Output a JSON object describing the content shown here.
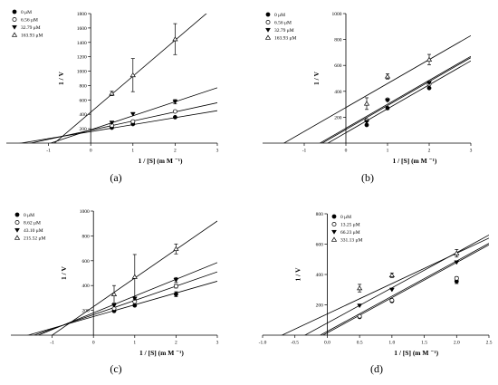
{
  "chart_data": [
    {
      "panel": "(a)",
      "type": "line",
      "xlabel": "1 / [S] (m M ⁻¹)",
      "ylabel": "1 / V",
      "xlim": [
        -2,
        3
      ],
      "ylim": [
        0,
        1800
      ],
      "xticks": [
        -1,
        0,
        1,
        2,
        3
      ],
      "yticks": [
        200,
        400,
        600,
        800,
        1000,
        1200,
        1400,
        1600,
        1800
      ],
      "xticklabels": [
        "-1",
        "0",
        "1",
        "2",
        "3"
      ],
      "yticklabels": [
        "200",
        "400",
        "600",
        "800",
        "1000",
        "1200",
        "1400",
        "1600",
        "1800"
      ],
      "series": [
        {
          "name": "0 μM",
          "marker": "filled-circle",
          "x": [
            0.5,
            1,
            2
          ],
          "y": [
            215,
            265,
            360
          ],
          "err": [
            0,
            0,
            0
          ],
          "line": {
            "slope": 97,
            "intercept": 160
          }
        },
        {
          "name": "6.56 μM",
          "marker": "open-circle",
          "x": [
            0.5,
            1,
            2
          ],
          "y": [
            245,
            300,
            440
          ],
          "err": [
            0,
            0,
            0
          ],
          "line": {
            "slope": 127,
            "intercept": 180
          }
        },
        {
          "name": "32.79 μM",
          "marker": "filled-triangle-down",
          "x": [
            0.5,
            1,
            2
          ],
          "y": [
            285,
            405,
            575
          ],
          "err": [
            0,
            0,
            30
          ],
          "line": {
            "slope": 195,
            "intercept": 185
          }
        },
        {
          "name": "163.93 μM",
          "marker": "open-triangle-up",
          "x": [
            0.5,
            1,
            2
          ],
          "y": [
            690,
            945,
            1445
          ],
          "err": [
            30,
            230,
            215
          ],
          "line": {
            "slope": 500,
            "intercept": 430
          }
        }
      ]
    },
    {
      "panel": "(b)",
      "type": "line",
      "xlabel": "1 / [S] (m M ⁻¹)",
      "ylabel": "1 / V",
      "xlim": [
        -2,
        3
      ],
      "ylim": [
        0,
        1000
      ],
      "xticks": [
        -1,
        0,
        1,
        2,
        3
      ],
      "yticks": [
        200,
        400,
        600,
        800,
        1000
      ],
      "xticklabels": [
        "-1",
        "0",
        "1",
        "2",
        "3"
      ],
      "yticklabels": [
        "200",
        "400",
        "600",
        "800",
        "1000"
      ],
      "series": [
        {
          "name": "0 μM",
          "marker": "filled-circle",
          "x": [
            0.5,
            1,
            2
          ],
          "y": [
            140,
            270,
            425
          ],
          "err": [
            0,
            0,
            0
          ],
          "line": {
            "slope": 185,
            "intercept": 80
          }
        },
        {
          "name": "6.56 μM",
          "marker": "open-circle",
          "x": [
            0.5,
            1,
            2
          ],
          "y": [
            175,
            335,
            455
          ],
          "err": [
            0,
            0,
            0
          ],
          "line": {
            "slope": 185,
            "intercept": 105
          }
        },
        {
          "name": "32.79 μM",
          "marker": "filled-triangle-down",
          "x": [
            0.5,
            1,
            2
          ],
          "y": [
            165,
            330,
            465
          ],
          "err": [
            0,
            0,
            0
          ],
          "line": {
            "slope": 185,
            "intercept": 115
          }
        },
        {
          "name": "163.93 μM",
          "marker": "open-triangle-up",
          "x": [
            0.5,
            1,
            2
          ],
          "y": [
            305,
            515,
            645
          ],
          "err": [
            45,
            20,
            40
          ],
          "line": {
            "slope": 185,
            "intercept": 275
          }
        }
      ]
    },
    {
      "panel": "(c)",
      "type": "line",
      "xlabel": "1 / [S] (m M ⁻¹)",
      "ylabel": "1 / V",
      "xlim": [
        -2,
        3
      ],
      "ylim": [
        0,
        1000
      ],
      "xticks": [
        -1,
        0,
        1,
        2,
        3
      ],
      "yticks": [
        200,
        400,
        600,
        800,
        1000
      ],
      "xticklabels": [
        "-1",
        "0",
        "1",
        "2",
        "3"
      ],
      "yticklabels": [
        "200",
        "400",
        "600",
        "800",
        "1000"
      ],
      "series": [
        {
          "name": "0 μM",
          "marker": "filled-circle",
          "x": [
            0.5,
            1,
            2
          ],
          "y": [
            195,
            240,
            330
          ],
          "err": [
            0,
            0,
            20
          ],
          "line": {
            "slope": 95,
            "intercept": 150
          }
        },
        {
          "name": "8.62 μM",
          "marker": "open-circle",
          "x": [
            0.5,
            1,
            2
          ],
          "y": [
            215,
            270,
            395
          ],
          "err": [
            0,
            0,
            15
          ],
          "line": {
            "slope": 115,
            "intercept": 165
          }
        },
        {
          "name": "43.10 μM",
          "marker": "filled-triangle-down",
          "x": [
            0.5,
            1,
            2
          ],
          "y": [
            240,
            295,
            445
          ],
          "err": [
            0,
            0,
            20
          ],
          "line": {
            "slope": 135,
            "intercept": 180
          }
        },
        {
          "name": "215.52 μM",
          "marker": "open-triangle-up",
          "x": [
            0.5,
            1,
            2
          ],
          "y": [
            330,
            470,
            695
          ],
          "err": [
            70,
            180,
            40
          ],
          "line": {
            "slope": 230,
            "intercept": 230
          }
        }
      ]
    },
    {
      "panel": "(d)",
      "type": "line",
      "xlabel": "1 / [S] (m M ⁻¹)",
      "ylabel": "1 / V",
      "xlim": [
        -1,
        2.5
      ],
      "ylim": [
        0,
        800
      ],
      "xticks": [
        -1,
        -0.5,
        0,
        0.5,
        1,
        1.5,
        2,
        2.5
      ],
      "yticks": [
        200,
        400,
        600,
        800
      ],
      "xticklabels": [
        "-1.0",
        "-0.5",
        "0.0",
        "0.5",
        "1.0",
        "1.5",
        "2.0",
        "2.5"
      ],
      "yticklabels": [
        "200",
        "400",
        "600",
        "800"
      ],
      "series": [
        {
          "name": "0 μM",
          "marker": "filled-circle",
          "x": [
            0.5,
            1,
            2
          ],
          "y": [
            120,
            225,
            355
          ],
          "err": [
            0,
            0,
            15
          ],
          "line": {
            "slope": 232,
            "intercept": 15
          }
        },
        {
          "name": "13.25 μM",
          "marker": "open-circle",
          "x": [
            0.5,
            1,
            2
          ],
          "y": [
            125,
            230,
            375
          ],
          "err": [
            0,
            0,
            10
          ],
          "line": {
            "slope": 232,
            "intercept": 25
          }
        },
        {
          "name": "66.23 μM",
          "marker": "filled-triangle-down",
          "x": [
            0.5,
            1,
            2
          ],
          "y": [
            195,
            300,
            480
          ],
          "err": [
            0,
            0,
            0
          ],
          "line": {
            "slope": 232,
            "intercept": 80
          }
        },
        {
          "name": "331.13 μM",
          "marker": "open-triangle-up",
          "x": [
            0.5,
            1,
            2
          ],
          "y": [
            310,
            395,
            540
          ],
          "err": [
            25,
            15,
            25
          ],
          "line": {
            "slope": 200,
            "intercept": 140
          }
        }
      ]
    }
  ]
}
